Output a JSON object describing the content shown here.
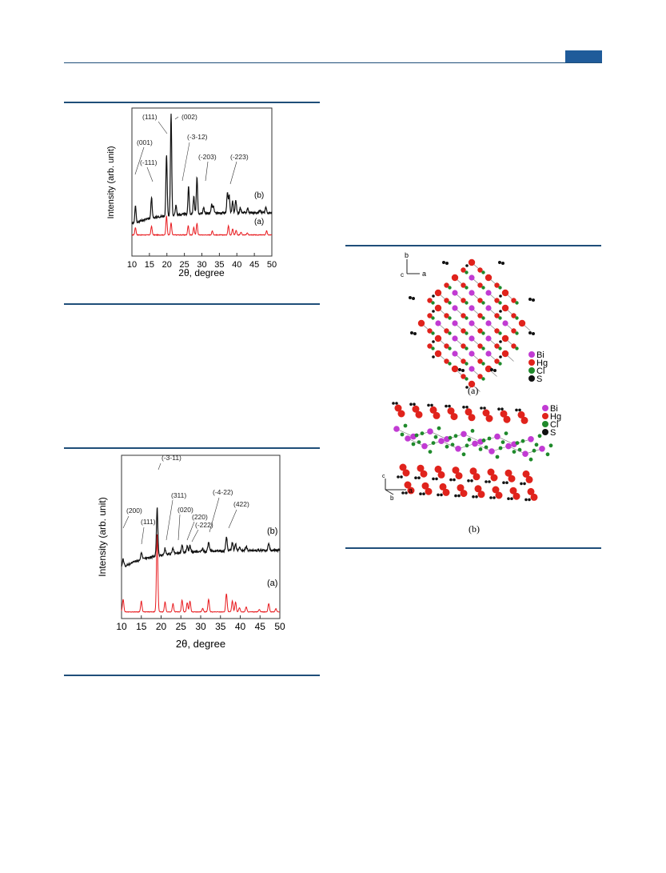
{
  "header": {
    "accent_color": "#1f5b9a",
    "rule_color": "#1f4e79"
  },
  "figures": [
    {
      "id": "xrd-1",
      "chart_data": {
        "type": "line",
        "xlabel": "2θ, degree",
        "ylabel": "Intensity (arb. unit)",
        "xlim": [
          10,
          50
        ],
        "xticks": [
          "10",
          "15",
          "20",
          "25",
          "30",
          "35",
          "40",
          "45",
          "50"
        ],
        "series": [
          {
            "name": "(a)",
            "color": "#e8191d",
            "peaks": [
              [
                11.0,
                22
              ],
              [
                15.6,
                26
              ],
              [
                19.9,
                56
              ],
              [
                21.2,
                36
              ],
              [
                26.1,
                28
              ],
              [
                27.7,
                22
              ],
              [
                28.6,
                34
              ],
              [
                33.0,
                12
              ],
              [
                37.6,
                28
              ],
              [
                38.8,
                18
              ],
              [
                39.8,
                14
              ],
              [
                41.2,
                8
              ],
              [
                43.0,
                6
              ],
              [
                48.5,
                12
              ]
            ]
          },
          {
            "name": "(b)",
            "color": "#111111",
            "peaks": [
              [
                11.0,
                40
              ],
              [
                15.6,
                48
              ],
              [
                19.9,
                140
              ],
              [
                21.2,
                230
              ],
              [
                22.6,
                22
              ],
              [
                26.2,
                62
              ],
              [
                27.7,
                40
              ],
              [
                28.6,
                82
              ],
              [
                30.5,
                14
              ],
              [
                32.8,
                20
              ],
              [
                33.3,
                16
              ],
              [
                37.3,
                44
              ],
              [
                37.8,
                40
              ],
              [
                38.8,
                26
              ],
              [
                39.7,
                30
              ],
              [
                41.0,
                12
              ],
              [
                43.1,
                10
              ],
              [
                46.6,
                8
              ],
              [
                48.3,
                12
              ]
            ]
          }
        ],
        "annotations": [
          "(111)",
          "(002)",
          "(001)",
          "(-3-12)",
          "(-111)",
          "(-203)",
          "(-223)"
        ]
      }
    },
    {
      "id": "xrd-2",
      "chart_data": {
        "type": "line",
        "xlabel": "2θ, degree",
        "ylabel": "Intensity (arb. unit)",
        "xlim": [
          10,
          50
        ],
        "xticks": [
          "10",
          "15",
          "20",
          "25",
          "30",
          "35",
          "40",
          "45",
          "50"
        ],
        "series": [
          {
            "name": "(a)",
            "color": "#e8191d",
            "peaks": [
              [
                10.4,
                30
              ],
              [
                15.0,
                26
              ],
              [
                19.0,
                190
              ],
              [
                21.0,
                24
              ],
              [
                23.0,
                20
              ],
              [
                25.3,
                28
              ],
              [
                26.6,
                22
              ],
              [
                27.3,
                26
              ],
              [
                30.5,
                8
              ],
              [
                32.0,
                30
              ],
              [
                36.5,
                44
              ],
              [
                38.0,
                26
              ],
              [
                38.8,
                24
              ],
              [
                39.8,
                10
              ],
              [
                41.5,
                12
              ],
              [
                44.8,
                6
              ],
              [
                47.2,
                20
              ],
              [
                49.0,
                8
              ]
            ]
          },
          {
            "name": "(b)",
            "color": "#111111",
            "peaks": [
              [
                10.4,
                18
              ],
              [
                15.0,
                16
              ],
              [
                19.0,
                110
              ],
              [
                21.0,
                14
              ],
              [
                23.0,
                12
              ],
              [
                25.3,
                18
              ],
              [
                26.6,
                14
              ],
              [
                27.3,
                16
              ],
              [
                30.5,
                6
              ],
              [
                32.0,
                20
              ],
              [
                36.5,
                32
              ],
              [
                38.0,
                18
              ],
              [
                38.8,
                16
              ],
              [
                39.8,
                8
              ],
              [
                41.5,
                10
              ],
              [
                47.2,
                16
              ]
            ]
          }
        ],
        "annotations": [
          "(-3-11)",
          "(311)",
          "(-4-22)",
          "(020)",
          "(422)",
          "(220)",
          "(200)",
          "(-222)",
          "(111)"
        ]
      }
    }
  ],
  "structure": {
    "legend": [
      {
        "label": "Bi",
        "color": "#c13bd3"
      },
      {
        "label": "Hg",
        "color": "#e0231c"
      },
      {
        "label": "Cl",
        "color": "#1f8a2b"
      },
      {
        "label": "S",
        "color": "#111111"
      }
    ],
    "panel_a": {
      "caption": "(a)",
      "axes": [
        "b",
        "c",
        "a"
      ]
    },
    "panel_b": {
      "caption": "(b)",
      "axes": [
        "c",
        "b",
        "a"
      ]
    }
  }
}
